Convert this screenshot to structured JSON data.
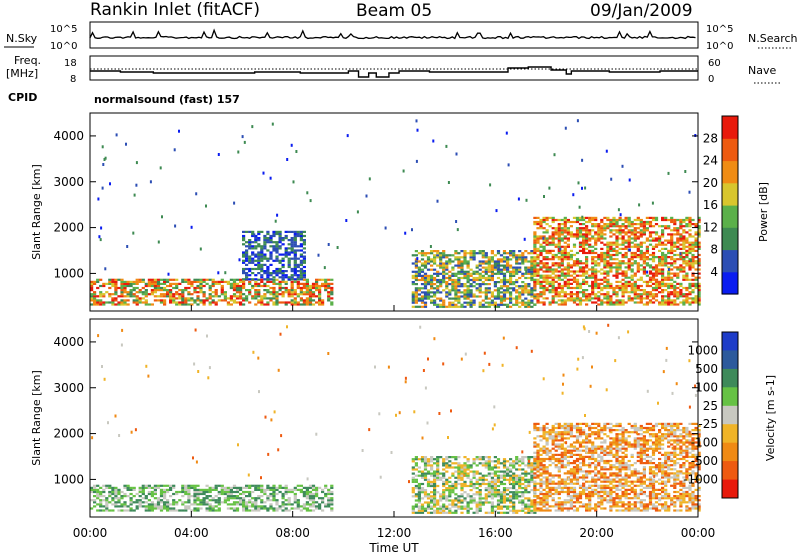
{
  "header": {
    "station": "Rankin Inlet (fitACF)",
    "beam": "Beam 05",
    "date": "09/Jan/2009"
  },
  "sidepanel": {
    "nsky_label": "N.Sky",
    "nsearch_label": "N.Search",
    "freq_label": "Freq.",
    "freq_unit": "[MHz]",
    "nave_label": "Nave",
    "cpid_label": "CPID",
    "cpid_value": "normalsound (fast) 157",
    "noise_ticks_left": [
      "10^5",
      "10^0"
    ],
    "noise_ticks_right": [
      "10^5",
      "10^0"
    ],
    "freq_ticks_left": [
      "18",
      "8"
    ],
    "nave_ticks_right": [
      "60",
      "0"
    ]
  },
  "colors": {
    "power": [
      "#0a1cf0",
      "#2c4eb4",
      "#3e8a52",
      "#5bb04a",
      "#d8c62e",
      "#f08c14",
      "#ee5a10",
      "#e81a0c"
    ],
    "velocity": [
      "#1e3cc8",
      "#2c5a9c",
      "#3e8a5a",
      "#66c244",
      "#c8c8c0",
      "#f0b428",
      "#f08a14",
      "#ee5a10",
      "#e81a0c"
    ]
  },
  "chart_data": [
    {
      "type": "heatmap",
      "panel": "power",
      "xlabel": "",
      "ylabel": "Slant Range [km]",
      "xlim": [
        "00:00",
        "24:00"
      ],
      "ylim": [
        180,
        4500
      ],
      "yticks": [
        "1000",
        "2000",
        "3000",
        "4000"
      ],
      "colorbar_label": "Power [dB]",
      "colorbar_ticks": [
        "4",
        "8",
        "12",
        "16",
        "20",
        "24",
        "28"
      ],
      "colorbar_range": [
        0,
        32
      ],
      "approx_echo_regions": [
        {
          "t_start": 0.0,
          "t_end": 9.5,
          "range_min": 300,
          "range_max": 850,
          "level": "medium-high"
        },
        {
          "t_start": 6.0,
          "t_end": 8.5,
          "range_min": 850,
          "range_max": 1900,
          "level": "low"
        },
        {
          "t_start": 12.7,
          "t_end": 17.5,
          "range_min": 250,
          "range_max": 1500,
          "level": "medium"
        },
        {
          "t_start": 17.5,
          "t_end": 24.0,
          "range_min": 300,
          "range_max": 2200,
          "level": "high"
        }
      ]
    },
    {
      "type": "heatmap",
      "panel": "velocity",
      "xlabel": "Time UT",
      "ylabel": "Slant Range [km]",
      "xlim": [
        "00:00",
        "24:00"
      ],
      "xticks": [
        "00:00",
        "04:00",
        "08:00",
        "12:00",
        "16:00",
        "20:00",
        "00:00"
      ],
      "ylim": [
        180,
        4500
      ],
      "yticks": [
        "1000",
        "2000",
        "3000",
        "4000"
      ],
      "colorbar_label": "Velocity [m s-1]",
      "colorbar_ticks": [
        "1000",
        "500",
        "100",
        "25",
        "-25",
        "-100",
        "-500",
        "-1000"
      ],
      "approx_echo_regions": [
        {
          "t_start": 0.0,
          "t_end": 9.5,
          "range_min": 300,
          "range_max": 850,
          "level": "25 to 100"
        },
        {
          "t_start": 12.7,
          "t_end": 17.5,
          "range_min": 250,
          "range_max": 1500,
          "level": "-25 to 100"
        },
        {
          "t_start": 17.5,
          "t_end": 24.0,
          "range_min": 300,
          "range_max": 2200,
          "level": "-100 to -500"
        }
      ]
    }
  ]
}
